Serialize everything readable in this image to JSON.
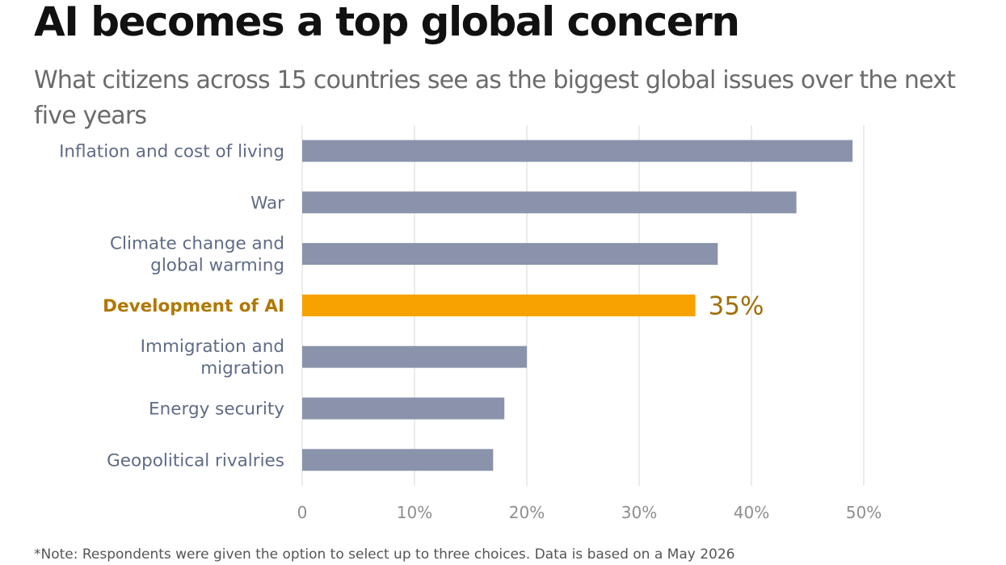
{
  "header": {
    "title": "AI becomes a top global concern",
    "subtitle": "What citizens across 15 countries see as the biggest global issues over the next five years"
  },
  "footer": {
    "note": "*Note: Respondents were given the option to select up to three choices. Data is based on a May 2026"
  },
  "colors": {
    "bar_default": "#8a93ab",
    "bar_highlight": "#f7a200",
    "label_default": "#5f6b85",
    "label_highlight": "#b07800",
    "value_highlight": "#a06f08",
    "grid": "#dedede",
    "axis_tick": "#8e8e8e"
  },
  "chart_data": {
    "type": "bar",
    "orientation": "horizontal",
    "categories": [
      [
        "Inflation and cost of living"
      ],
      [
        "War"
      ],
      [
        "Climate change and",
        "global warming"
      ],
      [
        "Development of AI"
      ],
      [
        "Immigration and",
        "migration"
      ],
      [
        "Energy security"
      ],
      [
        "Geopolitical rivalries"
      ]
    ],
    "values": [
      49,
      44,
      37,
      35,
      20,
      18,
      17
    ],
    "highlight_index": 3,
    "data_labels": [
      "",
      "",
      "",
      "35%",
      "",
      "",
      ""
    ],
    "xlim": [
      0,
      50
    ],
    "x_ticks": [
      0,
      10,
      20,
      30,
      40,
      50
    ],
    "x_tick_labels": [
      "0",
      "10%",
      "20%",
      "30%",
      "40%",
      "50%"
    ],
    "grid": "vertical",
    "xlabel": "",
    "ylabel": ""
  }
}
